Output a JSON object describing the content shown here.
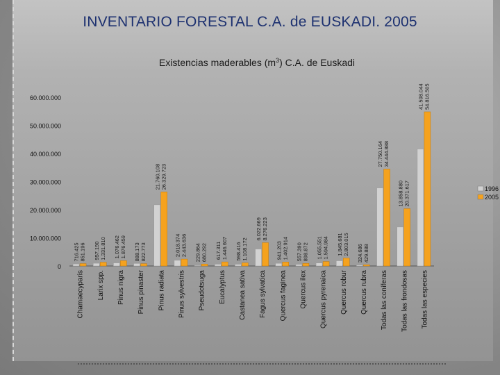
{
  "page_title": "INVENTARIO FORESTAL C.A. de EUSKADI. 2005",
  "chart_data": {
    "type": "bar",
    "title_prefix": "Existencias maderables (m",
    "title_sup": "3",
    "title_suffix": ")  C.A. de Euskadi",
    "ylim": [
      0,
      60000000
    ],
    "y_ticks": [
      0,
      10000000,
      20000000,
      30000000,
      40000000,
      50000000,
      60000000
    ],
    "y_tick_labels": [
      "0",
      "10.000.000",
      "20.000.000",
      "30.000.000",
      "40.000.000",
      "50.000.000",
      "60.000.000"
    ],
    "grid": false,
    "legend_position": "right",
    "categories": [
      "Chamaecyparis",
      "Larix spp.",
      "Pinus nigra",
      "Pinus pinaster",
      "Pinus radiata",
      "Pinus sylvestris",
      "Pseudotsuga",
      "Eucalyptus",
      "Castanea sativa",
      "Fagus sylvatica",
      "Quercus faginea",
      "Quercus ilex",
      "Quercus pyrenaica",
      "Quercus robur",
      "Quercus rubra",
      "Todas las coníferas",
      "Todas las frondosas",
      "Todas las especies"
    ],
    "series": [
      {
        "name": "1996",
        "color": "#d2d2d2",
        "values": [
          716425,
          957190,
          1076462,
          888173,
          21760108,
          2018374,
          229864,
          617311,
          598416,
          6022669,
          941203,
          557390,
          1055551,
          1845681,
          324686,
          27750164,
          13858880,
          41598044
        ],
        "labels": [
          "716.425",
          "957.190",
          "1.076.462",
          "888.173",
          "21.760.108",
          "2.018.374",
          "229.864",
          "617.311",
          "598.416",
          "6.022.669",
          "941.203",
          "557.390",
          "1.055.551",
          "1.845.681",
          "324.686",
          "27.750.164",
          "13.858.880",
          "41.598.044"
        ]
      },
      {
        "name": "2005",
        "color": "#f5a21e",
        "values": [
          851196,
          1331810,
          1876459,
          822773,
          26329723,
          2443636,
          680292,
          1446607,
          1108172,
          8276223,
          1402914,
          898872,
          1594984,
          2803015,
          429888,
          34444888,
          20371617,
          54816505
        ],
        "labels": [
          "851.196",
          "1.331.810",
          "1.876.459",
          "822.773",
          "26.329.723",
          "2.443.636",
          "680.292",
          "1.446.607",
          "1.108.172",
          "8.276.223",
          "1.402.914",
          "898.872",
          "1.594.984",
          "2.803.015",
          "429.888",
          "34.444.888",
          "20.371.617",
          "54.816.505"
        ]
      }
    ]
  }
}
